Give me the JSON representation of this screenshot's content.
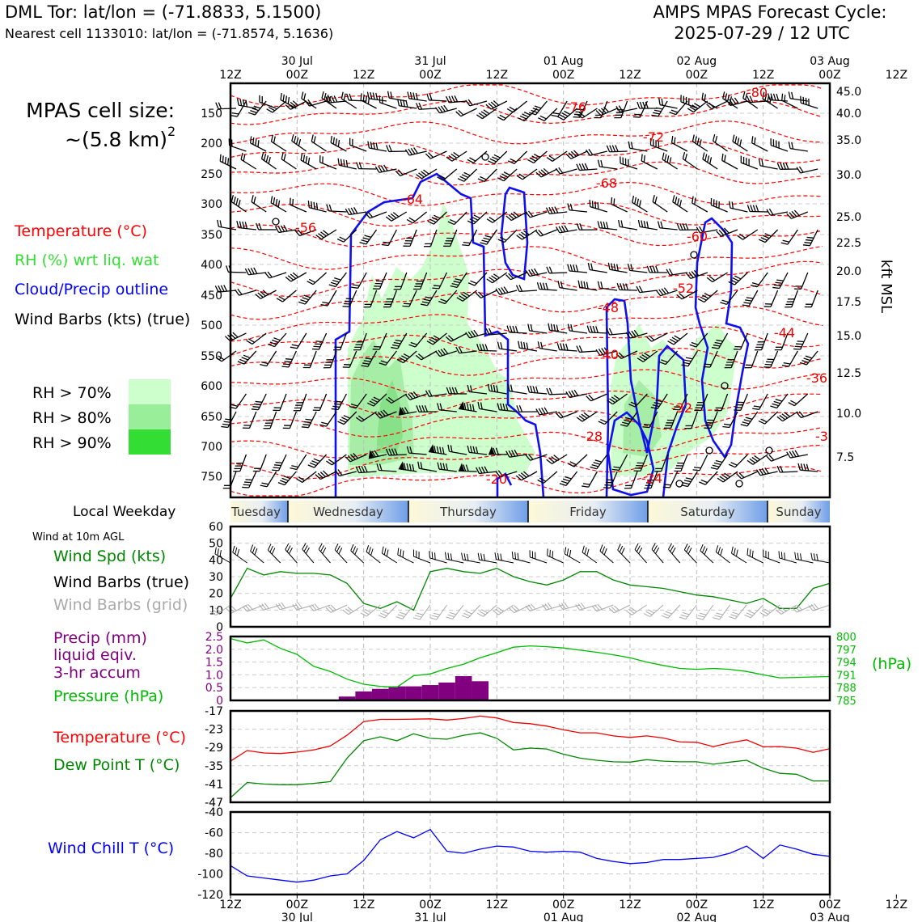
{
  "header": {
    "station_line": "DML Tor: lat/lon = (-71.8833, 5.1500)",
    "nearest_line": "Nearest cell 1133010: lat/lon = (-71.8574, 5.1636)",
    "cycle_title": "AMPS MPAS Forecast Cycle:",
    "cycle_date": "2025-07-29 / 12 UTC"
  },
  "cell_size": {
    "line1": "MPAS cell size:",
    "line2": "~(5.8 km)",
    "sup": "2"
  },
  "legend_top": {
    "temperature": "Temperature (°C)",
    "rh": "RH (%) wrt liq. wat",
    "cloud": "Cloud/Precip outline",
    "wind": "Wind Barbs (kts) (true)",
    "rh70": "RH > 70%",
    "rh80": "RH > 80%",
    "rh90": "RH > 90%"
  },
  "colors": {
    "temperature": "#ff0000",
    "rh_text": "#33dd33",
    "cloud": "#0000ff",
    "rh70": "#ccffcc",
    "rh80": "#99ee99",
    "rh90": "#33dd33",
    "wind_speed": "#008800",
    "precip": "#800080",
    "pressure": "#00bb00",
    "dewpoint": "#008800",
    "windchill": "#0000ff",
    "grid_barbs": "#aaaaaa"
  },
  "time_axis": {
    "hour_labels": [
      "12Z",
      "00Z",
      "12Z",
      "00Z",
      "12Z",
      "00Z",
      "12Z",
      "00Z",
      "12Z",
      "00Z",
      "12Z"
    ],
    "date_labels": [
      "30 Jul",
      "31 Jul",
      "01 Aug",
      "02 Aug",
      "03 Aug"
    ]
  },
  "weekday": {
    "title": "Local Weekday",
    "days": [
      "Tuesday",
      "Wednesday",
      "Thursday",
      "Friday",
      "Saturday",
      "Sunday"
    ]
  },
  "pressure_axis": {
    "labels": [
      "150",
      "200",
      "250",
      "300",
      "350",
      "400",
      "450",
      "500",
      "550",
      "600",
      "650",
      "700",
      "750"
    ],
    "kft_labels": [
      "45.0",
      "40.0",
      "35.0",
      "30.0",
      "25.0",
      "22.5",
      "20.0",
      "17.5",
      "15.0",
      "12.5",
      "10.0",
      "7.5"
    ],
    "kft_title": "kft MSL"
  },
  "isotherm_labels": [
    "-80",
    "-76",
    "-72",
    "-68",
    "-64",
    "-60",
    "-56",
    "-52",
    "-48",
    "-44",
    "-40",
    "-36",
    "-32",
    "-28",
    "-24",
    "-20",
    "-3"
  ],
  "panel_wind": {
    "title": "Wind at 10m AGL",
    "legend_speed": "Wind Spd (kts)",
    "legend_barbs": "Wind Barbs (true)",
    "legend_grid": "Wind Barbs (grid)",
    "yticks": [
      "0",
      "10",
      "20",
      "30",
      "40",
      "50",
      "60"
    ]
  },
  "panel_precip": {
    "legend_precip_1": "Precip (mm)",
    "legend_precip_2": "liquid eqiv.",
    "legend_precip_3": "3-hr accum",
    "legend_pressure": "Pressure (hPa)",
    "yticks_left": [
      "0",
      "0.5",
      "1.0",
      "1.5",
      "2.0",
      "2.5"
    ],
    "yticks_right": [
      "785",
      "788",
      "791",
      "794",
      "797",
      "800"
    ],
    "right_unit": "(hPa)"
  },
  "panel_temp": {
    "legend_temp": "Temperature (°C)",
    "legend_dew": "Dew Point T (°C)",
    "yticks": [
      "-47",
      "-41",
      "-35",
      "-29",
      "-23",
      "-17"
    ]
  },
  "panel_chill": {
    "legend": "Wind Chill T (°C)",
    "yticks": [
      "-120",
      "-100",
      "-80",
      "-60",
      "-40"
    ]
  },
  "chart_data": [
    {
      "type": "line",
      "name": "wind_speed_10m",
      "x_hours": [
        0,
        3,
        6,
        9,
        12,
        15,
        18,
        21,
        24,
        27,
        30,
        33,
        36,
        39,
        42,
        45,
        48,
        51,
        54,
        57,
        60,
        63,
        66,
        69,
        72,
        75,
        78,
        81,
        84,
        87,
        90,
        93,
        96,
        99,
        102,
        105,
        108
      ],
      "values": [
        17,
        35,
        31,
        33,
        32,
        32,
        31,
        26,
        14,
        11,
        15,
        10,
        33,
        35,
        33,
        32,
        35,
        30,
        27,
        25,
        28,
        33,
        33,
        28,
        25,
        24,
        23,
        21,
        19,
        18,
        16,
        14,
        17,
        11,
        11,
        23,
        26
      ],
      "ylim": [
        0,
        60
      ]
    },
    {
      "type": "bar",
      "name": "precip_3hr",
      "x_hours": [
        21,
        24,
        27,
        30,
        33,
        36,
        39,
        42,
        45
      ],
      "values": [
        0.15,
        0.35,
        0.45,
        0.55,
        0.55,
        0.6,
        0.7,
        0.95,
        0.75
      ],
      "ylim": [
        0,
        2.5
      ]
    },
    {
      "type": "line",
      "name": "pressure",
      "x_hours": [
        0,
        3,
        6,
        9,
        12,
        15,
        18,
        21,
        24,
        27,
        30,
        33,
        36,
        39,
        42,
        45,
        48,
        51,
        54,
        57,
        60,
        63,
        66,
        69,
        72,
        75,
        78,
        81,
        84,
        87,
        90,
        93,
        96,
        99,
        102,
        105,
        108
      ],
      "values": [
        799.5,
        798.5,
        799.2,
        797.2,
        795.8,
        793.0,
        791.8,
        790.0,
        788.8,
        788.3,
        788.1,
        790.8,
        791.2,
        792.5,
        793.5,
        795.0,
        796.2,
        797.5,
        797.8,
        797.6,
        797.3,
        796.8,
        796.3,
        795.7,
        795.0,
        794.0,
        793.2,
        792.5,
        792.3,
        792.5,
        792.3,
        791.8,
        791.0,
        790.3,
        790.4,
        790.5,
        790.6
      ],
      "ylim": [
        785,
        800
      ]
    },
    {
      "type": "line",
      "name": "temperature_2m",
      "x_hours": [
        0,
        3,
        6,
        9,
        12,
        15,
        18,
        21,
        24,
        27,
        30,
        33,
        36,
        39,
        42,
        45,
        48,
        51,
        54,
        57,
        60,
        63,
        66,
        69,
        72,
        75,
        78,
        81,
        84,
        87,
        90,
        93,
        96,
        99,
        102,
        105,
        108
      ],
      "values": [
        -33.5,
        -30.0,
        -30.8,
        -31.0,
        -30.5,
        -29.8,
        -28.5,
        -25.0,
        -20.5,
        -19.8,
        -19.8,
        -19.7,
        -19.6,
        -20.0,
        -19.5,
        -18.7,
        -19.3,
        -20.8,
        -21.2,
        -22.0,
        -23.2,
        -24.2,
        -24.2,
        -25.2,
        -25.7,
        -25.2,
        -25.9,
        -27.2,
        -27.3,
        -28.7,
        -27.5,
        -26.5,
        -28.8,
        -28.7,
        -29.2,
        -30.6,
        -29.4
      ],
      "ylim": [
        -47,
        -17
      ]
    },
    {
      "type": "line",
      "name": "dewpoint_2m",
      "x_hours": [
        0,
        3,
        6,
        9,
        12,
        15,
        18,
        21,
        24,
        27,
        30,
        33,
        36,
        39,
        42,
        45,
        48,
        51,
        54,
        57,
        60,
        63,
        66,
        69,
        72,
        75,
        78,
        81,
        84,
        87,
        90,
        93,
        96,
        99,
        102,
        105,
        108
      ],
      "values": [
        -45.5,
        -40.5,
        -41.0,
        -41.2,
        -41.2,
        -40.8,
        -40.2,
        -32.5,
        -26.8,
        -25.5,
        -26.8,
        -24.5,
        -26.0,
        -26.3,
        -25.0,
        -24.2,
        -26.0,
        -29.8,
        -29.2,
        -29.5,
        -31.2,
        -32.5,
        -33.2,
        -33.7,
        -33.8,
        -33.0,
        -33.5,
        -33.7,
        -33.7,
        -34.5,
        -33.8,
        -33.2,
        -35.8,
        -37.5,
        -37.8,
        -40.0,
        -40.0
      ],
      "ylim": [
        -47,
        -17
      ]
    },
    {
      "type": "line",
      "name": "wind_chill",
      "x_hours": [
        0,
        3,
        6,
        9,
        12,
        15,
        18,
        21,
        24,
        27,
        30,
        33,
        36,
        39,
        42,
        45,
        48,
        51,
        54,
        57,
        60,
        63,
        66,
        69,
        72,
        75,
        78,
        81,
        84,
        87,
        90,
        93,
        96,
        99,
        102,
        105,
        108
      ],
      "values": [
        -92,
        -102,
        -104,
        -106,
        -108,
        -106,
        -102,
        -100,
        -87,
        -67,
        -59,
        -65,
        -57,
        -78,
        -80,
        -76,
        -73,
        -74,
        -78,
        -79,
        -78,
        -79,
        -85,
        -88,
        -90,
        -89,
        -86,
        -86,
        -85,
        -84,
        -80,
        -73,
        -85,
        -72,
        -76,
        -81,
        -83
      ],
      "ylim": [
        -120,
        -40
      ]
    }
  ]
}
